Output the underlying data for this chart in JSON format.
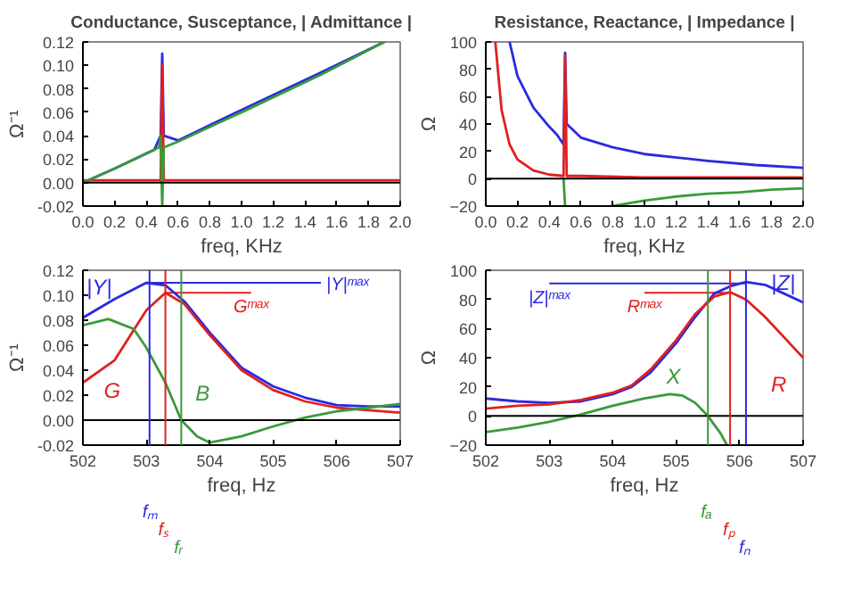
{
  "chart_data": [
    {
      "type": "line",
      "title": "Conductance, Susceptance, | Admittance |",
      "xlabel": "freq, KHz",
      "ylabel": "Ω⁻¹",
      "xlim": [
        0,
        2
      ],
      "ylim": [
        -0.02,
        0.12
      ],
      "xticks": [
        {
          "value": 0,
          "label": "0.0"
        },
        {
          "value": 0.2,
          "label": "0.2"
        },
        {
          "value": 0.4,
          "label": "0.4"
        },
        {
          "value": 0.6,
          "label": "0.6"
        },
        {
          "value": 0.8,
          "label": "0.8"
        },
        {
          "value": 1,
          "label": "1.0"
        },
        {
          "value": 1.2,
          "label": "1.2"
        },
        {
          "value": 1.4,
          "label": "1.4"
        },
        {
          "value": 1.6,
          "label": "1.6"
        },
        {
          "value": 1.8,
          "label": "1.8"
        },
        {
          "value": 2,
          "label": "2.0"
        }
      ],
      "yticks": [
        {
          "value": -0.02,
          "label": "-0.02"
        },
        {
          "value": 0,
          "label": "0.00"
        },
        {
          "value": 0.02,
          "label": "0.02"
        },
        {
          "value": 0.04,
          "label": "0.04"
        },
        {
          "value": 0.06,
          "label": "0.06"
        },
        {
          "value": 0.08,
          "label": "0.08"
        },
        {
          "value": 0.1,
          "label": "0.10"
        },
        {
          "value": 0.12,
          "label": "0.12"
        }
      ],
      "series": [
        {
          "color": "#2a2ae0",
          "x": [
            0,
            0.2,
            0.45,
            0.49,
            0.5,
            0.51,
            0.6,
            1.0,
            1.5,
            1.9
          ],
          "values": [
            0,
            0.012,
            0.028,
            0.04,
            0.11,
            0.04,
            0.036,
            0.062,
            0.094,
            0.12
          ]
        },
        {
          "color": "#e02020",
          "x": [
            0,
            0.49,
            0.5,
            0.51,
            2.0
          ],
          "values": [
            0.002,
            0.002,
            0.1,
            0.002,
            0.002
          ]
        },
        {
          "color": "#3a9a3a",
          "x": [
            0,
            0.2,
            0.4,
            0.48,
            0.49,
            0.5,
            0.51,
            0.6,
            1.0,
            1.5,
            1.9
          ],
          "values": [
            0,
            0.012,
            0.025,
            0.03,
            0.04,
            -0.02,
            0.03,
            0.035,
            0.06,
            0.092,
            0.12
          ]
        }
      ],
      "ref_lines": [
        {
          "axis": "y",
          "value": 0,
          "label": null,
          "color": "#000000"
        }
      ]
    },
    {
      "type": "line",
      "title": "Resistance, Reactance, | Impedance |",
      "xlabel": "freq, KHz",
      "ylabel": "Ω",
      "xlim": [
        0,
        2
      ],
      "ylim": [
        -20,
        100
      ],
      "xticks": [
        {
          "value": 0,
          "label": "0.0"
        },
        {
          "value": 0.2,
          "label": "0.2"
        },
        {
          "value": 0.4,
          "label": "0.4"
        },
        {
          "value": 0.6,
          "label": "0.6"
        },
        {
          "value": 0.8,
          "label": "0.8"
        },
        {
          "value": 1,
          "label": "1.0"
        },
        {
          "value": 1.2,
          "label": "1.2"
        },
        {
          "value": 1.4,
          "label": "1.4"
        },
        {
          "value": 1.6,
          "label": "1.6"
        },
        {
          "value": 1.8,
          "label": "1.8"
        },
        {
          "value": 2,
          "label": "2.0"
        }
      ],
      "yticks": [
        -20,
        0,
        20,
        40,
        60,
        80,
        100
      ],
      "series": [
        {
          "color": "#2a2ae0",
          "x": [
            0.15,
            0.2,
            0.3,
            0.4,
            0.45,
            0.49,
            0.5,
            0.51,
            0.6,
            0.8,
            1.0,
            1.4,
            1.7,
            2.0
          ],
          "values": [
            100,
            75,
            52,
            38,
            32,
            25,
            92,
            40,
            30,
            23,
            18,
            13,
            10,
            8
          ]
        },
        {
          "color": "#e02020",
          "x": [
            0.06,
            0.1,
            0.15,
            0.2,
            0.3,
            0.4,
            0.49,
            0.5,
            0.51,
            0.6,
            1.0,
            2.0
          ],
          "values": [
            100,
            50,
            25,
            14,
            6,
            3,
            2,
            90,
            2,
            2,
            1,
            1
          ]
        },
        {
          "color": "#3a9a3a",
          "x": [
            0.49,
            0.5,
            0.65,
            0.8,
            1.0,
            1.2,
            1.4,
            1.6,
            1.8,
            2.0
          ],
          "values": [
            0,
            -20,
            null,
            -20,
            -16,
            -13,
            -11,
            -10,
            -8,
            -7
          ]
        }
      ],
      "ref_lines": [
        {
          "axis": "y",
          "value": 0,
          "label": null,
          "color": "#000000"
        }
      ]
    },
    {
      "type": "line",
      "xlabel": "freq, Hz",
      "ylabel": "Ω⁻¹",
      "xlim": [
        502,
        507
      ],
      "ylim": [
        -0.02,
        0.12
      ],
      "xticks": [
        502,
        503,
        504,
        505,
        506,
        507
      ],
      "yticks": [
        {
          "value": -0.02,
          "label": "-0.02"
        },
        {
          "value": 0,
          "label": "0.00"
        },
        {
          "value": 0.02,
          "label": "0.02"
        },
        {
          "value": 0.04,
          "label": "0.04"
        },
        {
          "value": 0.06,
          "label": "0.06"
        },
        {
          "value": 0.08,
          "label": "0.08"
        },
        {
          "value": 0.1,
          "label": "0.10"
        },
        {
          "value": 0.12,
          "label": "0.12"
        }
      ],
      "series": [
        {
          "name": "|Y|",
          "color": "#2a2ae0",
          "x": [
            502,
            502.5,
            503,
            503.3,
            503.6,
            504,
            504.5,
            505,
            505.5,
            506,
            506.5,
            507
          ],
          "values": [
            0.082,
            0.097,
            0.11,
            0.108,
            0.095,
            0.07,
            0.042,
            0.027,
            0.018,
            0.012,
            0.011,
            0.011
          ]
        },
        {
          "name": "G",
          "color": "#e02020",
          "x": [
            502,
            502.5,
            503,
            503.3,
            503.6,
            504,
            504.5,
            505,
            505.5,
            506,
            506.5,
            507
          ],
          "values": [
            0.03,
            0.048,
            0.088,
            0.102,
            0.093,
            0.068,
            0.04,
            0.024,
            0.015,
            0.01,
            0.008,
            0.006
          ]
        },
        {
          "name": "B",
          "color": "#3a9a3a",
          "x": [
            502,
            502.4,
            502.8,
            503,
            503.3,
            503.55,
            503.8,
            504,
            504.5,
            505,
            505.5,
            506,
            506.5,
            507
          ],
          "values": [
            0.076,
            0.081,
            0.073,
            0.058,
            0.03,
            0,
            -0.013,
            -0.018,
            -0.013,
            -0.005,
            0.002,
            0.007,
            0.01,
            0.013
          ]
        }
      ],
      "ref_lines": [
        {
          "axis": "y",
          "value": 0,
          "label": null,
          "color": "#000000"
        },
        {
          "axis": "y",
          "value": 0.11,
          "label": "|Y|ᵐᵃˣ",
          "color": "#2a2ae0"
        },
        {
          "axis": "y",
          "value": 0.102,
          "label": "Gᵐᵃˣ",
          "color": "#e02020"
        },
        {
          "axis": "x",
          "value": 503.05,
          "label": "fₘ",
          "color": "#2a2ae0"
        },
        {
          "axis": "x",
          "value": 503.3,
          "label": "fₛ",
          "color": "#e02020"
        },
        {
          "axis": "x",
          "value": 503.55,
          "label": "fᵣ",
          "color": "#3a9a3a"
        }
      ]
    },
    {
      "type": "line",
      "xlabel": "freq, Hz",
      "ylabel": "Ω",
      "xlim": [
        502,
        507
      ],
      "ylim": [
        -20,
        100
      ],
      "xticks": [
        502,
        503,
        504,
        505,
        506,
        507
      ],
      "yticks": [
        -20,
        0,
        20,
        40,
        60,
        80,
        100
      ],
      "series": [
        {
          "name": "|Z|",
          "color": "#2a2ae0",
          "x": [
            502,
            502.5,
            503,
            503.5,
            504,
            504.3,
            504.6,
            505,
            505.3,
            505.6,
            505.85,
            506.1,
            506.4,
            506.7,
            507
          ],
          "values": [
            12,
            10,
            9,
            10,
            15,
            20,
            30,
            50,
            68,
            84,
            89,
            92,
            90,
            84,
            78
          ]
        },
        {
          "name": "R",
          "color": "#e02020",
          "x": [
            502,
            502.5,
            503,
            503.5,
            504,
            504.3,
            504.6,
            505,
            505.3,
            505.6,
            505.85,
            506.1,
            506.4,
            506.7,
            507
          ],
          "values": [
            5,
            7,
            8,
            11,
            16,
            21,
            32,
            52,
            70,
            82,
            85,
            80,
            68,
            54,
            40
          ]
        },
        {
          "name": "X",
          "color": "#3a9a3a",
          "x": [
            502,
            502.5,
            503,
            503.5,
            504,
            504.5,
            504.9,
            505.1,
            505.3,
            505.5,
            505.7,
            505.8
          ],
          "values": [
            -11,
            -8,
            -4,
            1,
            7,
            12,
            15,
            14,
            9,
            0,
            -12,
            -20
          ]
        }
      ],
      "ref_lines": [
        {
          "axis": "y",
          "value": 0,
          "label": null,
          "color": "#000000"
        },
        {
          "axis": "y",
          "value": 91,
          "label": "|Z|ᵐᵃˣ",
          "color": "#2a2ae0"
        },
        {
          "axis": "y",
          "value": 84.5,
          "label": "Rᵐᵃˣ",
          "color": "#e02020"
        },
        {
          "axis": "x",
          "value": 505.5,
          "label": "fₐ",
          "color": "#3a9a3a"
        },
        {
          "axis": "x",
          "value": 505.85,
          "label": "fₚ",
          "color": "#e02020"
        },
        {
          "axis": "x",
          "value": 506.1,
          "label": "fₙ",
          "color": "#2a2ae0"
        }
      ]
    }
  ]
}
